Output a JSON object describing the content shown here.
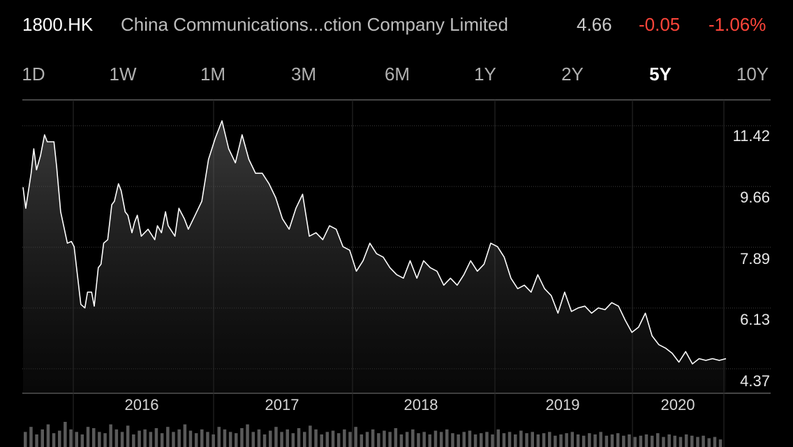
{
  "header": {
    "ticker": "1800.HK",
    "company": "China Communications...ction Company Limited",
    "price": "4.66",
    "change": "-0.05",
    "change_pct": "-1.06%"
  },
  "range_tabs": [
    {
      "label": "1D",
      "active": false
    },
    {
      "label": "1W",
      "active": false
    },
    {
      "label": "1M",
      "active": false
    },
    {
      "label": "3M",
      "active": false
    },
    {
      "label": "6M",
      "active": false
    },
    {
      "label": "1Y",
      "active": false
    },
    {
      "label": "2Y",
      "active": false
    },
    {
      "label": "5Y",
      "active": true
    },
    {
      "label": "10Y",
      "active": false
    }
  ],
  "colors": {
    "background": "#000000",
    "line": "#ffffff",
    "negative": "#ff453a",
    "grid": "#3a3a3a"
  },
  "chart_data": {
    "type": "line",
    "title": "",
    "xlabel": "",
    "ylabel": "",
    "ylim": [
      4.37,
      12.2
    ],
    "xlim": [
      2015.12,
      2020.35
    ],
    "y_ticks": [
      "11.42",
      "9.66",
      "7.89",
      "6.13",
      "4.37"
    ],
    "x_ticks": [
      {
        "label": "2016",
        "x": 2016.5
      },
      {
        "label": "2017",
        "x": 2017.5
      },
      {
        "label": "2018",
        "x": 2018.5
      },
      {
        "label": "2019",
        "x": 2019.5
      },
      {
        "label": "2020",
        "x": 2020.3
      }
    ],
    "vertical_gridlines": [
      2016.0,
      2017.0,
      2018.0,
      2019.0,
      2020.0,
      2020.65
    ],
    "grid": true,
    "series": [
      {
        "x": [
          2015.12,
          2015.14,
          2015.18,
          2015.2,
          2015.22,
          2015.25,
          2015.28,
          2015.3,
          2015.35,
          2015.37,
          2015.4,
          2015.45,
          2015.48,
          2015.5,
          2015.55,
          2015.58,
          2015.6,
          2015.63,
          2015.65,
          2015.68,
          2015.7,
          2015.72,
          2015.75,
          2015.78,
          2015.8,
          2015.83,
          2015.85,
          2015.88,
          2015.9,
          2015.93,
          2015.95,
          2015.97,
          2016.0,
          2016.05,
          2016.1,
          2016.12,
          2016.15,
          2016.18,
          2016.2,
          2016.25,
          2016.28,
          2016.32,
          2016.35,
          2016.4,
          2016.45,
          2016.5,
          2016.55,
          2016.6,
          2016.65,
          2016.7,
          2016.75,
          2016.8,
          2016.85,
          2016.9,
          2016.95,
          2017.0,
          2017.05,
          2017.1,
          2017.15,
          2017.2,
          2017.25,
          2017.3,
          2017.35,
          2017.4,
          2017.45,
          2017.5,
          2017.55,
          2017.6,
          2017.65,
          2017.7,
          2017.75,
          2017.8,
          2017.85,
          2017.9,
          2017.95,
          2018.0,
          2018.05,
          2018.1,
          2018.15,
          2018.2,
          2018.25,
          2018.3,
          2018.35,
          2018.4,
          2018.45,
          2018.5,
          2018.55,
          2018.6,
          2018.65,
          2018.7,
          2018.75,
          2018.8,
          2018.85,
          2018.9,
          2018.95,
          2019.0,
          2019.05,
          2019.1,
          2019.15,
          2019.2,
          2019.25,
          2019.3,
          2019.35,
          2019.4,
          2019.45,
          2019.5,
          2019.55,
          2019.6,
          2019.65,
          2019.7,
          2019.75,
          2019.8,
          2019.85,
          2019.9,
          2019.95,
          2020.0,
          2020.05,
          2020.1,
          2020.15,
          2020.2,
          2020.25,
          2020.3,
          2020.35
        ],
        "y": [
          9.9,
          9.3,
          10.3,
          11.0,
          10.4,
          10.8,
          11.4,
          11.2,
          11.2,
          10.5,
          9.2,
          8.3,
          8.35,
          8.2,
          6.55,
          6.45,
          6.9,
          6.9,
          6.5,
          7.6,
          7.7,
          8.3,
          8.4,
          9.4,
          9.5,
          10.0,
          9.8,
          9.2,
          9.1,
          8.6,
          8.9,
          9.1,
          8.5,
          8.7,
          8.4,
          8.8,
          8.6,
          9.2,
          8.8,
          8.5,
          9.3,
          9.0,
          8.7,
          9.1,
          9.5,
          10.7,
          11.3,
          11.8,
          11.0,
          10.6,
          11.4,
          10.7,
          10.3,
          10.3,
          10.0,
          9.6,
          9.0,
          8.7,
          9.3,
          9.7,
          8.5,
          8.6,
          8.4,
          8.8,
          8.7,
          8.2,
          8.1,
          7.5,
          7.8,
          8.3,
          8.0,
          7.9,
          7.6,
          7.4,
          7.3,
          7.8,
          7.3,
          7.8,
          7.6,
          7.5,
          7.1,
          7.3,
          7.1,
          7.4,
          7.8,
          7.5,
          7.7,
          8.3,
          8.2,
          7.9,
          7.3,
          7.0,
          7.1,
          6.9,
          7.4,
          7.0,
          6.8,
          6.3,
          6.9,
          6.35,
          6.45,
          6.5,
          6.3,
          6.45,
          6.4,
          6.6,
          6.5,
          6.1,
          5.75,
          5.9,
          6.3,
          5.65,
          5.4,
          5.3,
          5.15,
          4.9,
          5.2,
          4.85,
          5.0,
          4.95,
          5.0,
          4.95,
          5.0
        ]
      }
    ],
    "volume": [
      0.6,
      0.8,
      0.5,
      0.7,
      0.9,
      0.55,
      0.65,
      1.0,
      0.7,
      0.6,
      0.5,
      0.8,
      0.75,
      0.6,
      0.55,
      0.9,
      0.7,
      0.6,
      0.85,
      0.5,
      0.65,
      0.7,
      0.6,
      0.75,
      0.55,
      0.8,
      0.6,
      0.7,
      0.9,
      0.65,
      0.55,
      0.7,
      0.6,
      0.5,
      0.8,
      0.7,
      0.6,
      0.55,
      0.75,
      0.9,
      0.6,
      0.7,
      0.5,
      0.65,
      0.8,
      0.6,
      0.7,
      0.55,
      0.75,
      0.6,
      0.85,
      0.7,
      0.5,
      0.6,
      0.65,
      0.55,
      0.7,
      0.6,
      0.8,
      0.5,
      0.6,
      0.7,
      0.55,
      0.65,
      0.6,
      0.75,
      0.5,
      0.6,
      0.7,
      0.55,
      0.6,
      0.5,
      0.65,
      0.6,
      0.7,
      0.55,
      0.5,
      0.6,
      0.65,
      0.5,
      0.55,
      0.6,
      0.5,
      0.7,
      0.55,
      0.6,
      0.5,
      0.65,
      0.55,
      0.6,
      0.5,
      0.55,
      0.6,
      0.45,
      0.5,
      0.55,
      0.6,
      0.5,
      0.45,
      0.55,
      0.5,
      0.6,
      0.45,
      0.5,
      0.55,
      0.45,
      0.5,
      0.4,
      0.45,
      0.5,
      0.45,
      0.55,
      0.4,
      0.5,
      0.45,
      0.4,
      0.5,
      0.45,
      0.4,
      0.45,
      0.35,
      0.4,
      0.3
    ]
  }
}
